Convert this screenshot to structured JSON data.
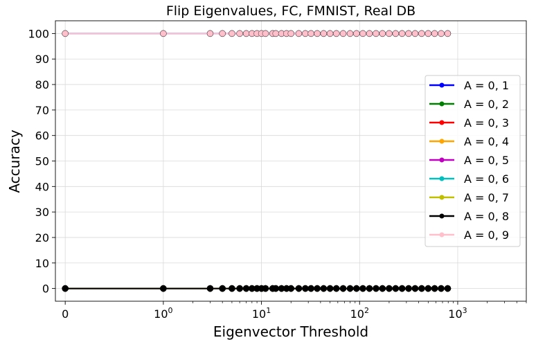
{
  "chart_data": {
    "type": "line",
    "title": "Flip Eigenvalues, FC, FMNIST, Real DB",
    "xlabel": "Eigenvector Threshold",
    "ylabel": "Accuracy",
    "xscale": "symlog",
    "xlim": [
      -0.1,
      5000
    ],
    "ylim": [
      -5,
      105
    ],
    "x_ticks": [
      {
        "value": 0,
        "label": "0",
        "base": "0",
        "exp": ""
      },
      {
        "value": 1,
        "label": "10^0",
        "base": "10",
        "exp": "0"
      },
      {
        "value": 10,
        "label": "10^1",
        "base": "10",
        "exp": "1"
      },
      {
        "value": 100,
        "label": "10^2",
        "base": "10",
        "exp": "2"
      },
      {
        "value": 1000,
        "label": "10^3",
        "base": "10",
        "exp": "3"
      }
    ],
    "y_ticks": [
      0,
      10,
      20,
      30,
      40,
      50,
      60,
      70,
      80,
      90,
      100
    ],
    "grid": true,
    "legend_position": "center-right",
    "x": [
      0,
      1,
      3,
      4,
      5,
      6,
      7,
      8,
      9,
      10,
      11,
      13,
      14,
      16,
      18,
      20,
      24,
      28,
      32,
      37,
      43,
      50,
      58,
      68,
      80,
      93,
      108,
      126,
      147,
      171,
      200,
      233,
      271,
      316,
      368,
      429,
      500,
      582,
      678,
      790
    ],
    "series": [
      {
        "name": "A = 0, 1",
        "color": "#0000ff",
        "base_value": 100,
        "values_note": "first value 100, rest 0"
      },
      {
        "name": "A = 0, 2",
        "color": "#008000",
        "base_value": 0
      },
      {
        "name": "A = 0, 3",
        "color": "#ff0000",
        "base_value": 0
      },
      {
        "name": "A = 0, 4",
        "color": "#ffa500",
        "base_value": 0
      },
      {
        "name": "A = 0, 5",
        "color": "#bf00bf",
        "base_value": 0
      },
      {
        "name": "A = 0, 6",
        "color": "#00bfbf",
        "base_value": 0
      },
      {
        "name": "A = 0, 7",
        "color": "#bfbf00",
        "base_value": 0
      },
      {
        "name": "A = 0, 8",
        "color": "#000000",
        "base_value": 0
      },
      {
        "name": "A = 0, 9",
        "color": "#ffc0cb",
        "base_value": 100
      }
    ]
  }
}
